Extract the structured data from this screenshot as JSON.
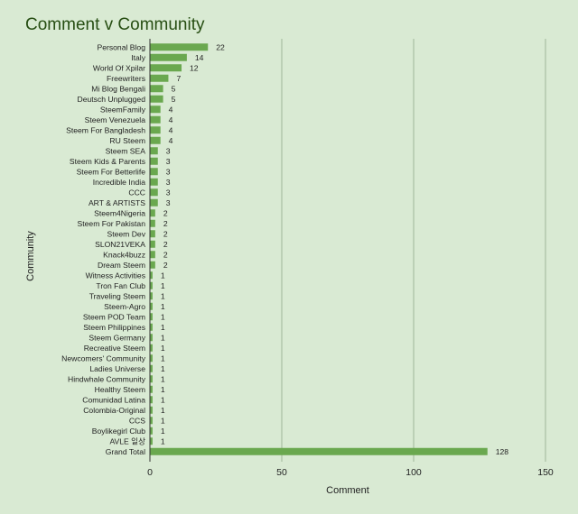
{
  "chart_data": {
    "type": "bar",
    "orientation": "horizontal",
    "title": "Comment v Community",
    "xlabel": "Comment",
    "ylabel": "Community",
    "xlim": [
      0,
      150
    ],
    "xticks": [
      0,
      50,
      100,
      150
    ],
    "grid": true,
    "bar_color": "#6aa84f",
    "title_color": "#274e13",
    "background": "#d9ead3",
    "categories": [
      "Personal Blog",
      "Italy",
      "World Of Xpilar",
      "Freewriters",
      "Mi Blog Bengali",
      "Deutsch Unplugged",
      "SteemFamily",
      "Steem Venezuela",
      "Steem For Bangladesh",
      "RU Steem",
      "Steem SEA",
      "Steem Kids & Parents",
      "Steem For Betterlife",
      "Incredible India",
      "CCC",
      "ART & ARTISTS",
      "Steem4Nigeria",
      "Steem For Pakistan",
      "Steem Dev",
      "SLON21VEKA",
      "Knack4buzz",
      "Dream Steem",
      "Witness Activities",
      "Tron Fan Club",
      "Traveling Steem",
      "Steem-Agro",
      "Steem POD Team",
      "Steem Philippines",
      "Steem Germany",
      "Recreative Steem",
      "Newcomers' Community",
      "Ladies Universe",
      "Hindwhale Community",
      "Healthy Steem",
      "Comunidad Latina",
      "Colombia-Original",
      "CCS",
      "Boylikegirl Club",
      "AVLE 일상",
      "Grand Total"
    ],
    "values": [
      22,
      14,
      12,
      7,
      5,
      5,
      4,
      4,
      4,
      4,
      3,
      3,
      3,
      3,
      3,
      3,
      2,
      2,
      2,
      2,
      2,
      2,
      1,
      1,
      1,
      1,
      1,
      1,
      1,
      1,
      1,
      1,
      1,
      1,
      1,
      1,
      1,
      1,
      1,
      128
    ]
  }
}
